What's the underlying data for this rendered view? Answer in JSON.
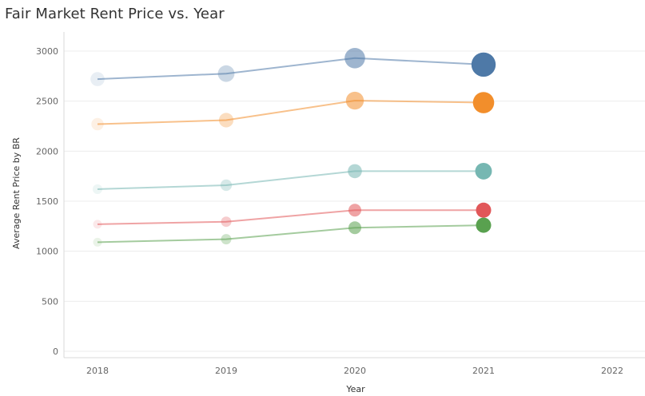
{
  "chart_data": {
    "type": "line",
    "title": "Fair Market Rent Price vs. Year",
    "xlabel": "Year",
    "ylabel": "Average Rent Price by BR",
    "x": [
      2018,
      2019,
      2020,
      2021
    ],
    "x_ticks": [
      "2018",
      "2019",
      "2020",
      "2021",
      "2022"
    ],
    "xlim": [
      2018,
      2022
    ],
    "ylim": [
      0,
      3000
    ],
    "y_ticks": [
      "0",
      "500",
      "1000",
      "1500",
      "2000",
      "2500",
      "3000"
    ],
    "grid": true,
    "legend": "none",
    "series": [
      {
        "color": "#4e79a7",
        "values": [
          2720,
          2775,
          2930,
          2865
        ]
      },
      {
        "color": "#f28e2b",
        "values": [
          2270,
          2310,
          2505,
          2485
        ]
      },
      {
        "color": "#76b7b2",
        "values": [
          1620,
          1660,
          1800,
          1800
        ]
      },
      {
        "color": "#e15759",
        "values": [
          1270,
          1295,
          1410,
          1410
        ]
      },
      {
        "color": "#59a14f",
        "values": [
          1090,
          1120,
          1235,
          1260
        ]
      }
    ]
  }
}
